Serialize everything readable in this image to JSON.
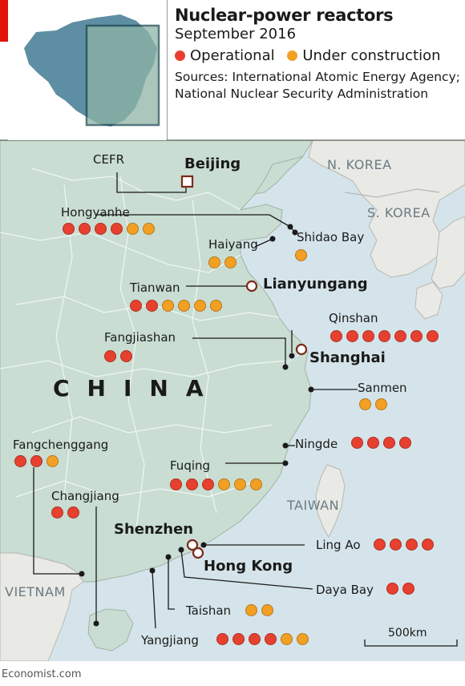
{
  "header": {
    "title": "Nuclear-power reactors",
    "subtitle": "September 2016",
    "legend": [
      {
        "label": "Operational",
        "color": "#e8402f"
      },
      {
        "label": "Under construction",
        "color": "#f2a024"
      }
    ],
    "sources": "Sources: International Atomic Energy Agency; National Nuclear Security Administration"
  },
  "colors": {
    "operational": "#e8402f",
    "construction": "#f2a024",
    "land_china": "#c9ddd2",
    "land_other": "#e9e9e6",
    "sea": "#d5e4ea",
    "inset_land": "#5e8ea3",
    "inset_frame": "#1f4a55",
    "accent": "#e3120b"
  },
  "cities": {
    "beijing": "Beijing",
    "lianyungang": "Lianyungang",
    "shanghai": "Shanghai",
    "shenzhen": "Shenzhen",
    "hong_kong": "Hong Kong"
  },
  "countries": {
    "china": "CHINA",
    "n_korea": "N. KOREA",
    "s_korea": "S. KOREA",
    "taiwan": "TAIWAN",
    "vietnam": "VIETNAM"
  },
  "plants": [
    {
      "name": "CEFR",
      "operational": 0,
      "construction": 0
    },
    {
      "name": "Hongyanhe",
      "operational": 4,
      "construction": 2
    },
    {
      "name": "Haiyang",
      "operational": 0,
      "construction": 2
    },
    {
      "name": "Shidao Bay",
      "operational": 0,
      "construction": 1
    },
    {
      "name": "Tianwan",
      "operational": 2,
      "construction": 4
    },
    {
      "name": "Qinshan",
      "operational": 7,
      "construction": 0
    },
    {
      "name": "Fangjiashan",
      "operational": 2,
      "construction": 0
    },
    {
      "name": "Sanmen",
      "operational": 0,
      "construction": 2
    },
    {
      "name": "Fangchenggang",
      "operational": 2,
      "construction": 1
    },
    {
      "name": "Ningde",
      "operational": 4,
      "construction": 0
    },
    {
      "name": "Fuqing",
      "operational": 3,
      "construction": 3
    },
    {
      "name": "Changjiang",
      "operational": 2,
      "construction": 0
    },
    {
      "name": "Ling Ao",
      "operational": 4,
      "construction": 0
    },
    {
      "name": "Daya Bay",
      "operational": 2,
      "construction": 0
    },
    {
      "name": "Taishan",
      "operational": 0,
      "construction": 2
    },
    {
      "name": "Yangjiang",
      "operational": 4,
      "construction": 2
    }
  ],
  "scale": "500km",
  "credit": "Economist.com"
}
